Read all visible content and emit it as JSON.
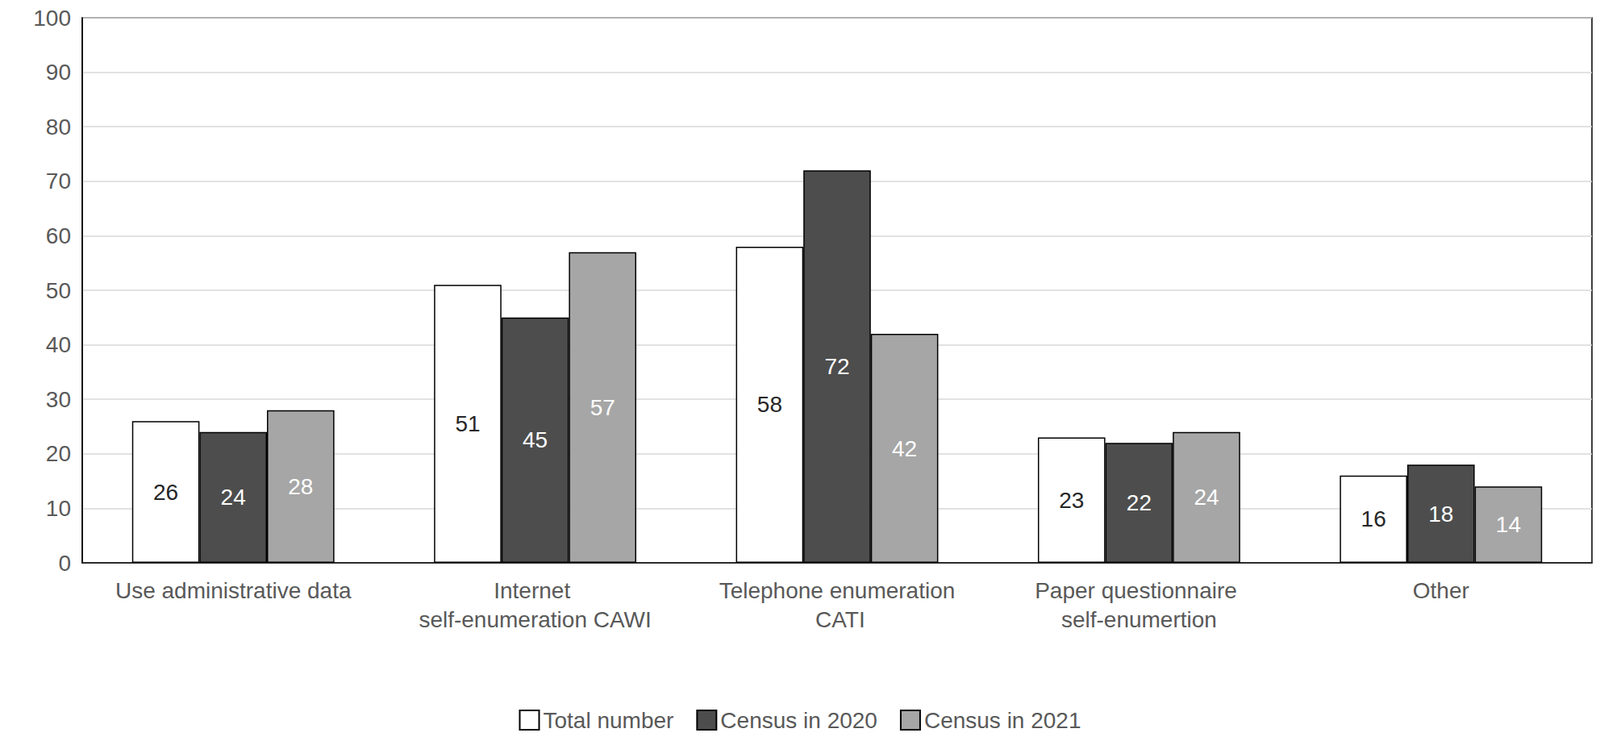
{
  "chart_data": {
    "type": "bar",
    "categories": [
      "Use administrative data",
      "Internet self-enumeration CAWI",
      "Telephone enumeration CATI",
      "Paper questionnaire self-enumertion",
      "Other"
    ],
    "series": [
      {
        "name": "Total number",
        "color": "#ffffff",
        "values": [
          26,
          51,
          58,
          23,
          16
        ]
      },
      {
        "name": "Census in 2020",
        "color": "#4d4d4d",
        "values": [
          24,
          45,
          72,
          22,
          18
        ]
      },
      {
        "name": "Census in 2021",
        "color": "#a6a6a6",
        "values": [
          28,
          57,
          42,
          24,
          14
        ]
      }
    ],
    "ylim": [
      0,
      100
    ],
    "yticks": [
      0,
      10,
      20,
      30,
      40,
      50,
      60,
      70,
      80,
      90,
      100
    ],
    "grid": true,
    "legend": "bottom",
    "data_labels": true
  }
}
